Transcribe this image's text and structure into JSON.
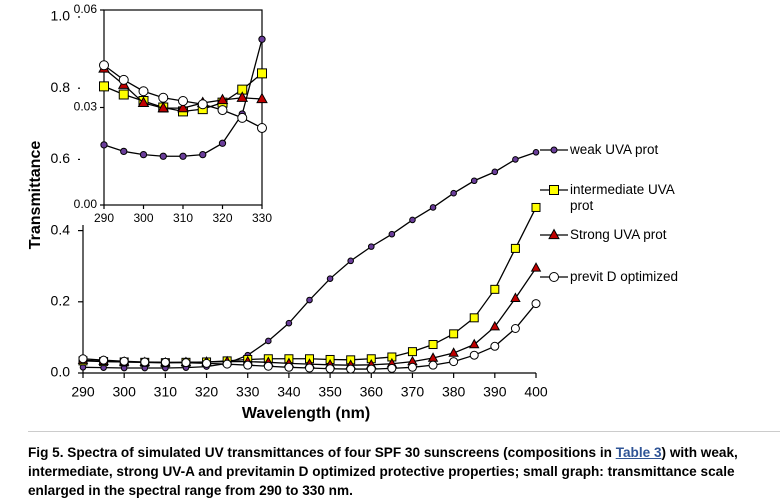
{
  "chart_data": [
    {
      "type": "line",
      "xlabel": "Wavelength (nm)",
      "ylabel": "Transmittance",
      "x": [
        290,
        295,
        300,
        305,
        310,
        315,
        320,
        325,
        330,
        335,
        340,
        345,
        350,
        355,
        360,
        365,
        370,
        375,
        380,
        385,
        390,
        395,
        400
      ],
      "xlim": [
        290,
        400
      ],
      "xticks": [
        290,
        300,
        310,
        320,
        330,
        340,
        350,
        360,
        370,
        380,
        390,
        400
      ],
      "ylim": [
        0,
        1
      ],
      "yticks": [
        {
          "value": 0,
          "label": "0.0"
        },
        0.2,
        0.4,
        0.6,
        0.8,
        {
          "value": 1,
          "label": "1.0"
        }
      ],
      "legend": "right",
      "series": [
        {
          "name": "weak UVA prot",
          "color": "#6a3d9a",
          "marker": "circle",
          "values": [
            0.016,
            0.015,
            0.014,
            0.014,
            0.014,
            0.015,
            0.018,
            0.027,
            0.05,
            0.09,
            0.14,
            0.205,
            0.265,
            0.315,
            0.355,
            0.39,
            0.43,
            0.465,
            0.505,
            0.54,
            0.565,
            0.6,
            0.62
          ]
        },
        {
          "name": "intermediate UVA prot",
          "color": "#ffff00",
          "marker": "square",
          "values": [
            0.034,
            0.032,
            0.031,
            0.03,
            0.029,
            0.03,
            0.031,
            0.034,
            0.038,
            0.04,
            0.04,
            0.04,
            0.038,
            0.037,
            0.04,
            0.045,
            0.06,
            0.08,
            0.11,
            0.155,
            0.235,
            0.35,
            0.465
          ]
        },
        {
          "name": "Strong UVA prot",
          "color": "#c00000",
          "marker": "triangle",
          "values": [
            0.036,
            0.033,
            0.031,
            0.03,
            0.029,
            0.03,
            0.031,
            0.032,
            0.032,
            0.03,
            0.027,
            0.025,
            0.023,
            0.022,
            0.023,
            0.026,
            0.032,
            0.042,
            0.056,
            0.08,
            0.13,
            0.21,
            0.295
          ]
        },
        {
          "name": "previt D optimized",
          "color": "#ffffff",
          "marker": "circle",
          "values": [
            0.04,
            0.036,
            0.033,
            0.031,
            0.03,
            0.029,
            0.027,
            0.025,
            0.022,
            0.019,
            0.016,
            0.014,
            0.012,
            0.011,
            0.011,
            0.013,
            0.016,
            0.022,
            0.032,
            0.05,
            0.075,
            0.125,
            0.195
          ]
        }
      ]
    },
    {
      "type": "line",
      "x": [
        290,
        295,
        300,
        305,
        310,
        315,
        320,
        325,
        330
      ],
      "xlim": [
        290,
        330
      ],
      "xticks": [
        290,
        300,
        310,
        320,
        330
      ],
      "ylim": [
        0,
        0.06
      ],
      "yticks": [
        {
          "value": 0,
          "label": "0.00"
        },
        {
          "value": 0.03,
          "label": "0.03"
        },
        {
          "value": 0.06,
          "label": "0.06"
        }
      ],
      "series": [
        {
          "color": "#6a3d9a",
          "marker": "circle",
          "values": [
            0.0185,
            0.0165,
            0.0155,
            0.015,
            0.015,
            0.0155,
            0.019,
            0.028,
            0.051
          ]
        },
        {
          "color": "#ffff00",
          "marker": "square",
          "values": [
            0.0365,
            0.034,
            0.032,
            0.03,
            0.0288,
            0.0295,
            0.0315,
            0.0355,
            0.0405
          ]
        },
        {
          "color": "#c00000",
          "marker": "triangle",
          "values": [
            0.042,
            0.037,
            0.0314,
            0.0298,
            0.0298,
            0.0314,
            0.0323,
            0.033,
            0.0326
          ]
        },
        {
          "color": "#ffffff",
          "marker": "circle",
          "values": [
            0.043,
            0.0385,
            0.035,
            0.033,
            0.032,
            0.031,
            0.0292,
            0.0268,
            0.0237
          ]
        }
      ]
    }
  ],
  "caption": {
    "before": "Fig 5. Spectra of simulated UV transmittances of four SPF 30 sunscreens (compositions in ",
    "link": "Table 3",
    "after": ") with weak, intermediate, strong UV-A and previtamin D optimized protective properties; small graph: transmittance scale enlarged in the spectral range from 290 to 330 nm."
  }
}
